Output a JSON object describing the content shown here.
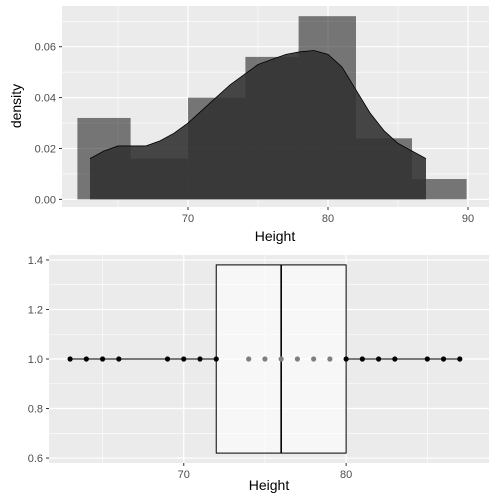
{
  "chart_data": [
    {
      "type": "histogram",
      "xlabel": "Height",
      "ylabel": "density",
      "xlim": [
        61,
        91.5
      ],
      "ylim": [
        -0.003,
        0.076
      ],
      "x_ticks": [
        70,
        80,
        90
      ],
      "y_ticks": [
        0.0,
        0.02,
        0.04,
        0.06
      ],
      "y_tick_labels": [
        "0.00",
        "0.02",
        "0.04",
        "0.06"
      ],
      "grid": true,
      "bins": [
        {
          "x0": 62.1,
          "x1": 65.9,
          "density": 0.032
        },
        {
          "x0": 65.9,
          "x1": 70.0,
          "density": 0.016
        },
        {
          "x0": 70.0,
          "x1": 74.1,
          "density": 0.04
        },
        {
          "x0": 74.1,
          "x1": 77.9,
          "density": 0.056
        },
        {
          "x0": 77.9,
          "x1": 82.0,
          "density": 0.072
        },
        {
          "x0": 82.0,
          "x1": 86.0,
          "density": 0.024
        },
        {
          "x0": 86.0,
          "x1": 89.9,
          "density": 0.008
        }
      ],
      "density_curve": {
        "x": [
          63,
          64,
          65,
          66,
          67,
          68,
          69,
          70,
          71,
          72,
          73,
          74,
          75,
          76,
          77,
          78,
          79,
          80,
          81,
          82,
          83,
          84,
          85,
          86,
          87
        ],
        "y": [
          0.016,
          0.019,
          0.021,
          0.021,
          0.021,
          0.023,
          0.026,
          0.03,
          0.035,
          0.04,
          0.045,
          0.049,
          0.053,
          0.055,
          0.057,
          0.058,
          0.0585,
          0.057,
          0.052,
          0.043,
          0.034,
          0.027,
          0.022,
          0.019,
          0.016
        ]
      },
      "colors": {
        "panel": "#ebebeb",
        "grid": "#ffffff",
        "histogram_fill": "#000000",
        "histogram_alpha": 0.5,
        "density_fill": "#333333",
        "density_alpha": 0.9,
        "curve_line": "#000000"
      }
    },
    {
      "type": "boxplot",
      "xlabel": "Height",
      "ylabel": "",
      "xlim": [
        61.7,
        88.8
      ],
      "ylim": [
        0.58,
        1.42
      ],
      "x_ticks": [
        70,
        80
      ],
      "y_ticks": [
        0.6,
        0.8,
        1.0,
        1.2,
        1.4
      ],
      "y_tick_labels": [
        "0.6",
        "0.8",
        "1.0",
        "1.2",
        "1.4"
      ],
      "grid": true,
      "box": {
        "y": 1.0,
        "q1": 72,
        "median": 76,
        "q3": 80,
        "ymin": 0.62,
        "ymax": 1.38
      },
      "whisker_range": [
        63,
        87
      ],
      "points": [
        63,
        64,
        65,
        66,
        69,
        70,
        71,
        72,
        74,
        75,
        76,
        77,
        78,
        79,
        80,
        81,
        82,
        83,
        85,
        86,
        87
      ],
      "colors": {
        "panel": "#ebebeb",
        "grid": "#ffffff",
        "box_fill": "#ffffff",
        "box_alpha": 0.6,
        "box_line": "#000000",
        "point": "#000000",
        "inner_point": "#7f7f7f"
      }
    }
  ]
}
